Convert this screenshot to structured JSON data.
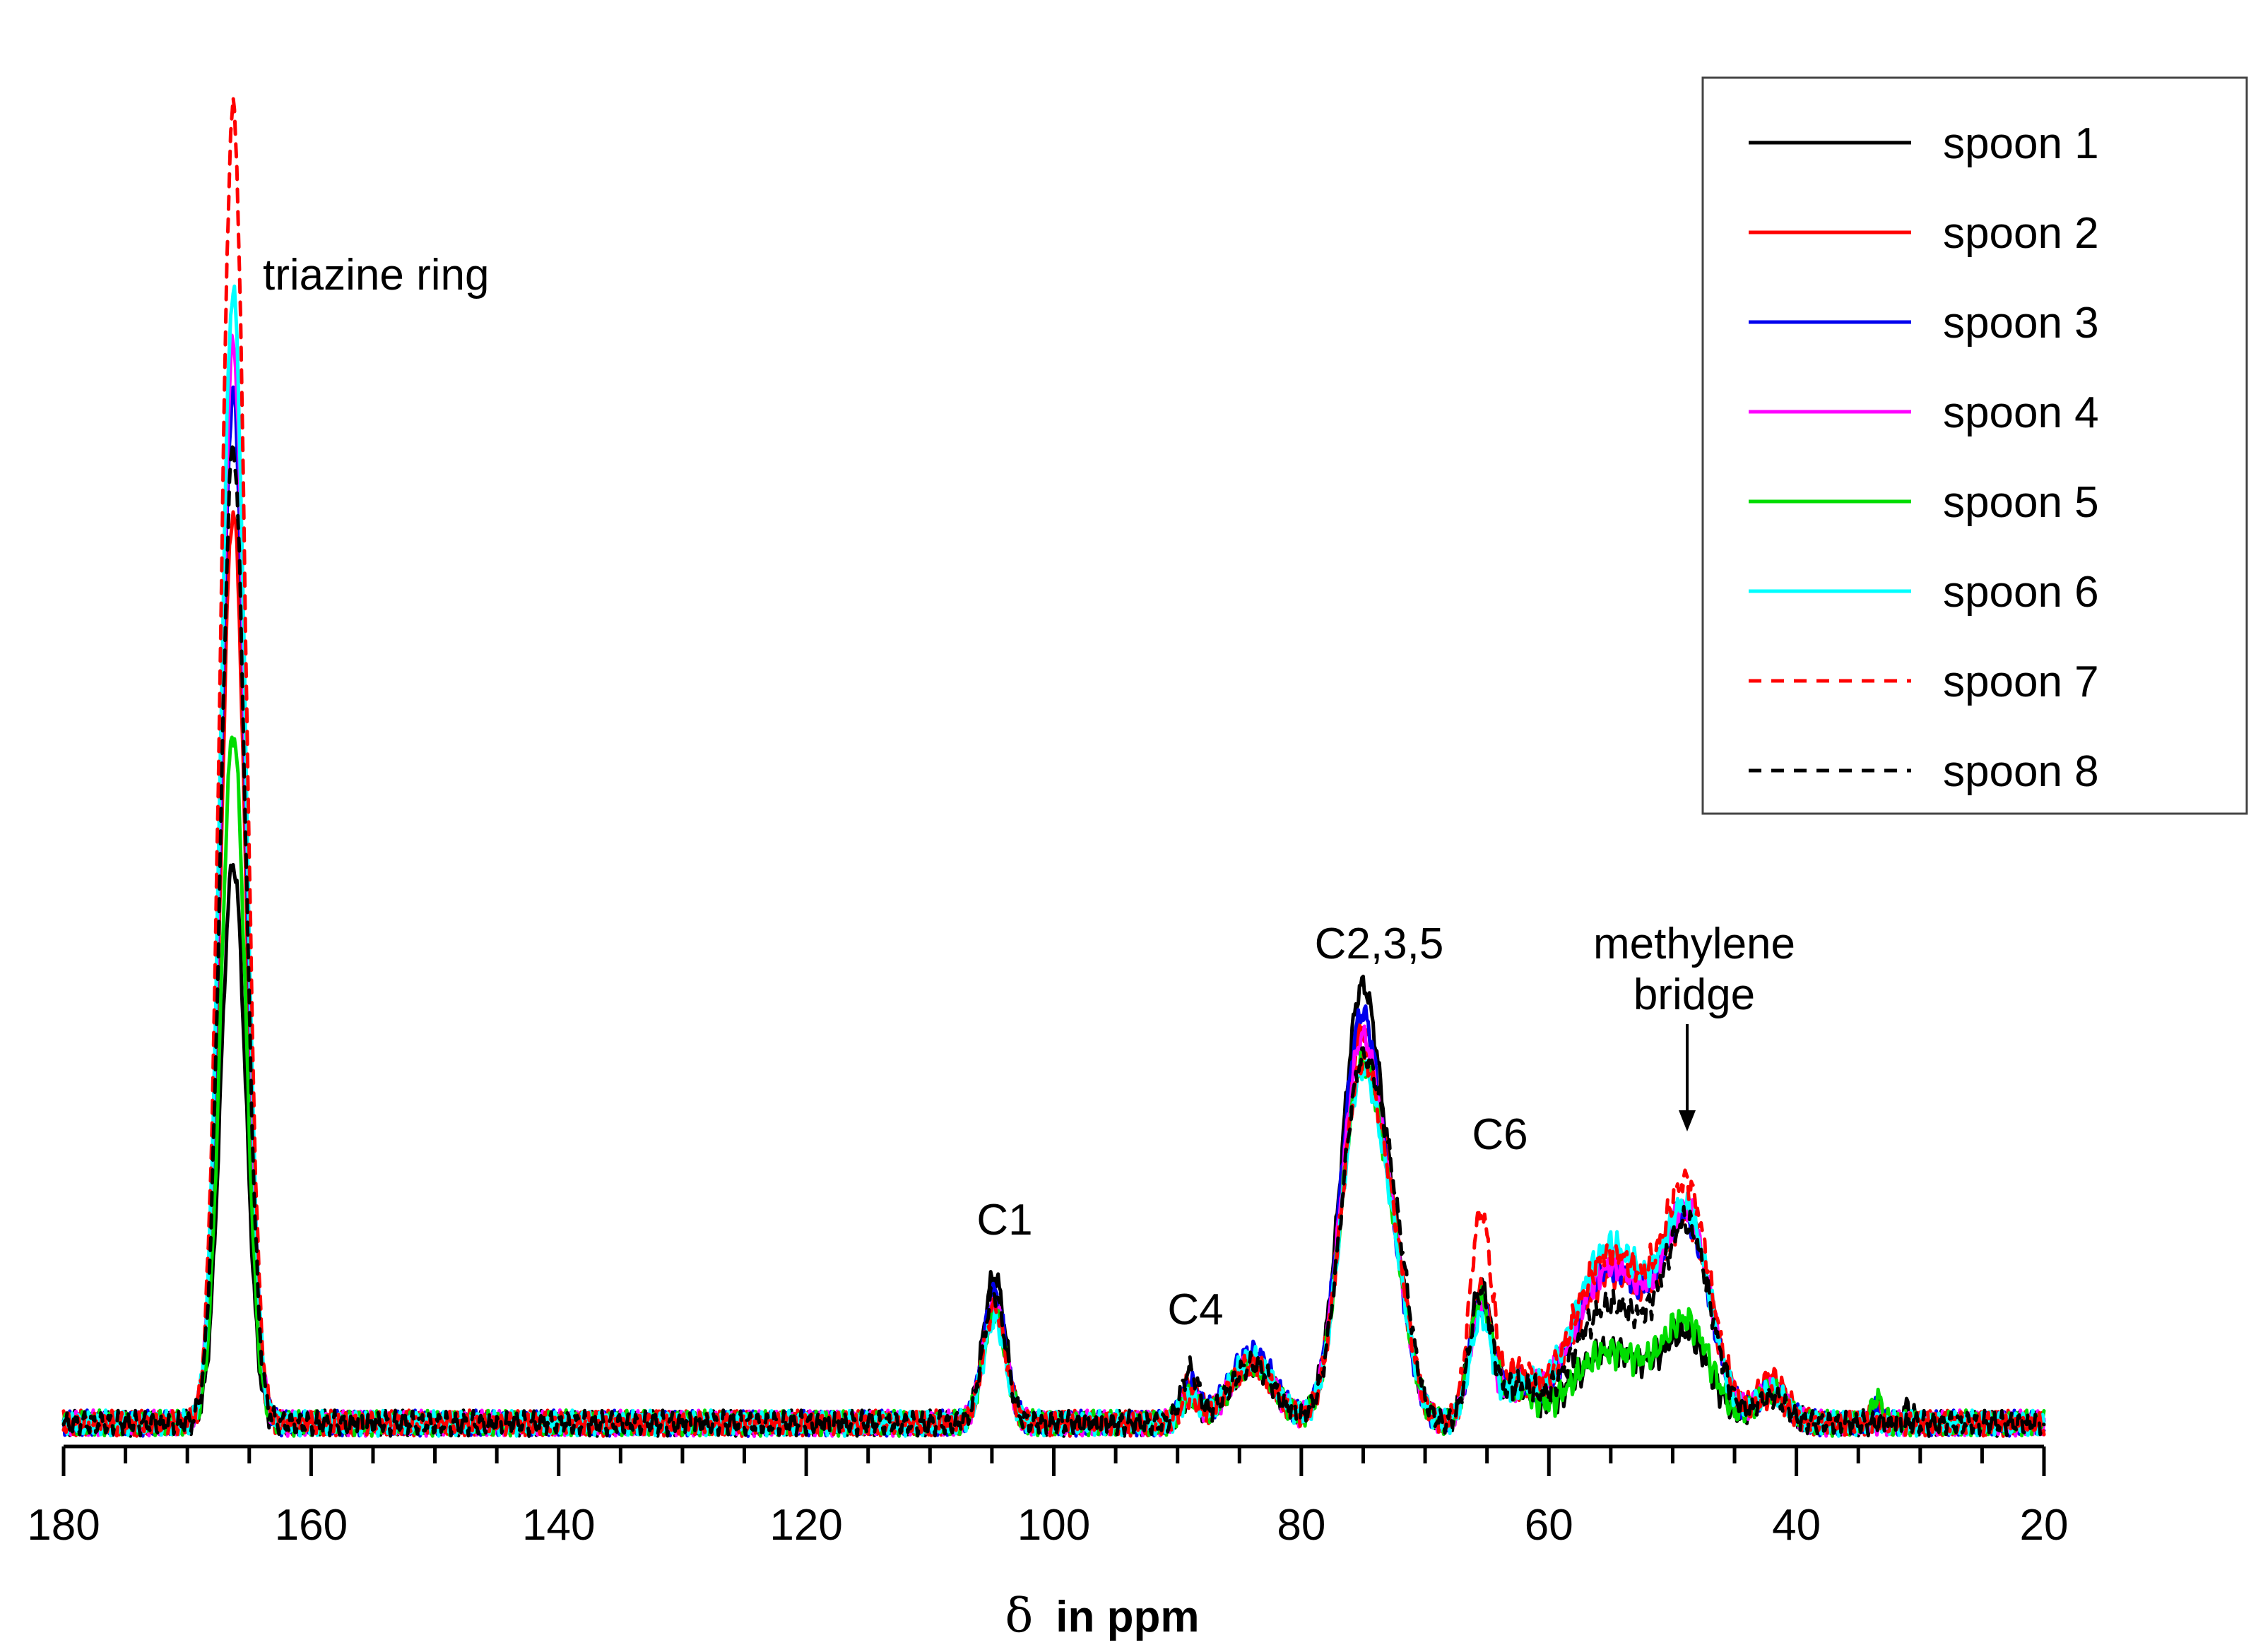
{
  "chart_data": {
    "type": "line",
    "title": "",
    "xlabel": {
      "symbol": "δ",
      "text": "in ppm"
    },
    "ylabel": "",
    "xlim": [
      180,
      20
    ],
    "ylim": [
      0,
      1.05
    ],
    "x_ticks": [
      180,
      160,
      140,
      120,
      100,
      80,
      60,
      40,
      20
    ],
    "x_minor_step": 5,
    "grid": false,
    "legend_position": "top-right",
    "peaks": [
      {
        "name": "triazine",
        "center": 166.3,
        "width": 1.0
      },
      {
        "name": "C1",
        "center": 104.8,
        "width": 0.9
      },
      {
        "name": "C4",
        "center": 89.0,
        "width": 0.7
      },
      {
        "name": "C4b",
        "center": 84.0,
        "width": 1.8
      },
      {
        "name": "C235",
        "center": 75.2,
        "width": 1.6
      },
      {
        "name": "C235s",
        "center": 72.5,
        "width": 1.3
      },
      {
        "name": "C6",
        "center": 65.5,
        "width": 0.9
      },
      {
        "name": "C6s",
        "center": 62.5,
        "width": 1.2
      },
      {
        "name": "hump",
        "center": 55.0,
        "width": 3.0
      },
      {
        "name": "methylene",
        "center": 48.8,
        "width": 1.9
      },
      {
        "name": "p42",
        "center": 42.0,
        "width": 1.2
      },
      {
        "name": "p33",
        "center": 33.5,
        "width": 0.4
      },
      {
        "name": "p31",
        "center": 31.0,
        "width": 0.4
      }
    ],
    "series": [
      {
        "name": "spoon 1",
        "color": "#000000",
        "dashed": false,
        "amplitudes": [
          0.43,
          0.113,
          0.02,
          0.045,
          0.325,
          0.09,
          0.105,
          0.025,
          0.055,
          0.063,
          0.025,
          0.012,
          0.012
        ]
      },
      {
        "name": "spoon 2",
        "color": "#ff0000",
        "dashed": false,
        "amplitudes": [
          0.7,
          0.09,
          0.03,
          0.045,
          0.29,
          0.09,
          0.1,
          0.025,
          0.115,
          0.145,
          0.035,
          0.01,
          0.0
        ]
      },
      {
        "name": "spoon 3",
        "color": "#0000ee",
        "dashed": false,
        "amplitudes": [
          0.79,
          0.1,
          0.03,
          0.055,
          0.305,
          0.08,
          0.09,
          0.025,
          0.12,
          0.145,
          0.025,
          0.01,
          0.0
        ]
      },
      {
        "name": "spoon 4",
        "color": "#ff00ff",
        "dashed": false,
        "amplitudes": [
          0.83,
          0.09,
          0.02,
          0.045,
          0.285,
          0.09,
          0.09,
          0.025,
          0.12,
          0.15,
          0.025,
          0.0,
          0.0
        ]
      },
      {
        "name": "spoon 5",
        "color": "#00dd00",
        "dashed": false,
        "amplitudes": [
          0.53,
          0.085,
          0.02,
          0.045,
          0.265,
          0.09,
          0.095,
          0.025,
          0.055,
          0.073,
          0.025,
          0.02,
          0.0
        ]
      },
      {
        "name": "spoon 6",
        "color": "#00ffff",
        "dashed": false,
        "amplitudes": [
          0.87,
          0.08,
          0.02,
          0.05,
          0.26,
          0.09,
          0.08,
          0.025,
          0.135,
          0.15,
          0.025,
          0.0,
          0.0
        ]
      },
      {
        "name": "spoon 7",
        "color": "#ff0000",
        "dashed": true,
        "amplitudes": [
          1.01,
          0.09,
          0.02,
          0.045,
          0.265,
          0.1,
          0.16,
          0.035,
          0.13,
          0.17,
          0.02,
          0.0,
          0.0
        ]
      },
      {
        "name": "spoon 8",
        "color": "#000000",
        "dashed": true,
        "amplitudes": [
          0.75,
          0.1,
          0.04,
          0.045,
          0.265,
          0.12,
          0.1,
          0.025,
          0.09,
          0.143,
          0.02,
          0.0,
          0.0
        ]
      }
    ],
    "annotations": [
      {
        "id": "triazine",
        "text": "triazine ring"
      },
      {
        "id": "c1",
        "text": "C1"
      },
      {
        "id": "c4",
        "text": "C4"
      },
      {
        "id": "c235",
        "text": "C2,3,5"
      },
      {
        "id": "c6",
        "text": "C6"
      },
      {
        "id": "methylene",
        "text": "methylene\nbridge"
      }
    ]
  }
}
